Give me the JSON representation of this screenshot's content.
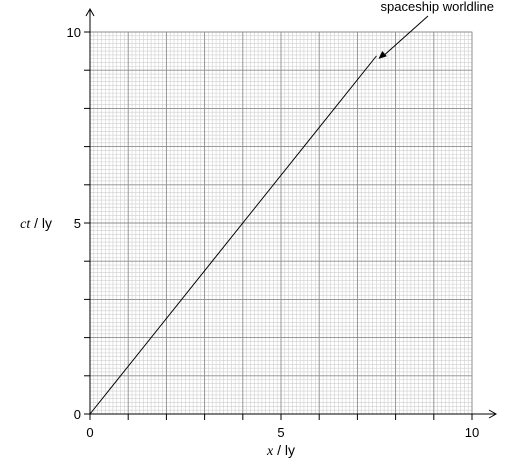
{
  "chart_data": {
    "type": "line",
    "x_axis": {
      "label_var": "x",
      "label_unit": " / ly",
      "range": [
        0,
        10
      ],
      "ticks": [
        0,
        5,
        10
      ],
      "tick_labels": [
        "0",
        "5",
        "10"
      ]
    },
    "y_axis": {
      "label_var": "ct",
      "label_unit": " / ly",
      "range": [
        0,
        10
      ],
      "ticks": [
        0,
        5,
        10
      ],
      "tick_labels": [
        "0",
        "5",
        "10"
      ]
    },
    "grid": true,
    "series": [
      {
        "name": "spaceship worldline",
        "x": [
          0,
          7.5
        ],
        "y": [
          0,
          9.375
        ]
      }
    ],
    "annotations": [
      {
        "text": "spaceship worldline",
        "points_to": [
          7.5,
          9.375
        ]
      }
    ]
  }
}
